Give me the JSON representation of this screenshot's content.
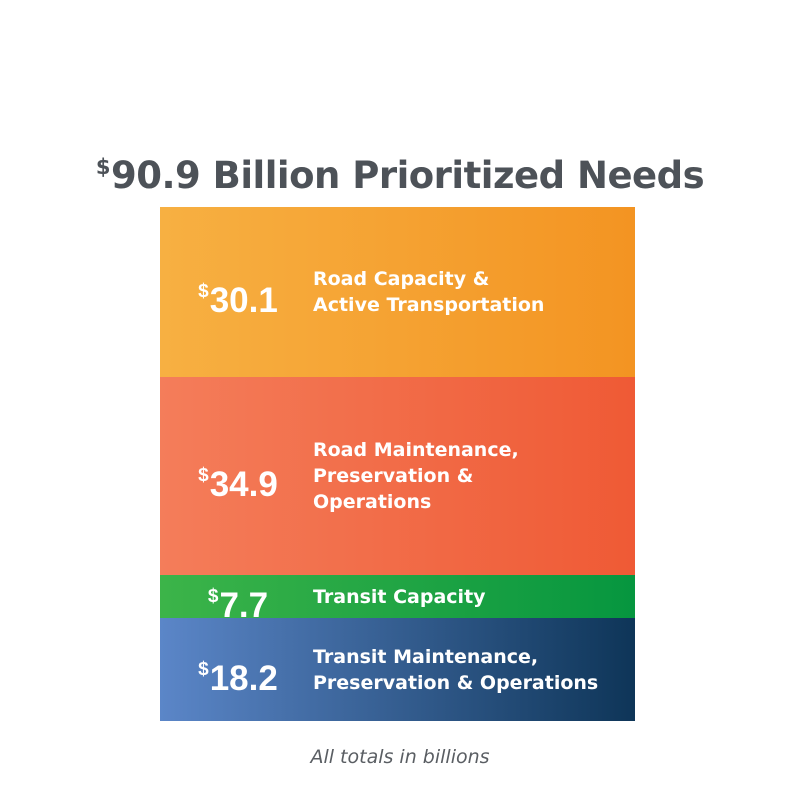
{
  "title": {
    "currency": "$",
    "text": "90.9 Billion Prioritized Needs"
  },
  "footnote": "All totals in billions",
  "chart_data": {
    "type": "stacked-bar",
    "title": "$90.9 Billion Prioritized Needs",
    "total": 90.9,
    "unit": "billions",
    "currency": "$",
    "orientation": "vertical-stack",
    "categories": [
      "Road Capacity & Active Transportation",
      "Road Maintenance, Preservation & Operations",
      "Transit Capacity",
      "Transit Maintenance, Preservation & Operations"
    ],
    "values": [
      30.1,
      34.9,
      7.7,
      18.2
    ],
    "segments": [
      {
        "value": 30.1,
        "value_label": "30.1",
        "label": "Road Capacity &\nActive Transportation",
        "color_start": "#f7b042",
        "color_end": "#f39422"
      },
      {
        "value": 34.9,
        "value_label": "34.9",
        "label": "Road Maintenance,\nPreservation &\nOperations",
        "color_start": "#f47d5a",
        "color_end": "#ef5a35"
      },
      {
        "value": 7.7,
        "value_label": "7.7",
        "label": "Transit Capacity",
        "color_start": "#3cb449",
        "color_end": "#06963f"
      },
      {
        "value": 18.2,
        "value_label": "18.2",
        "label": "Transit Maintenance,\nPreservation & Operations",
        "color_start": "#5b86c8",
        "color_end": "#0e3558"
      }
    ]
  }
}
